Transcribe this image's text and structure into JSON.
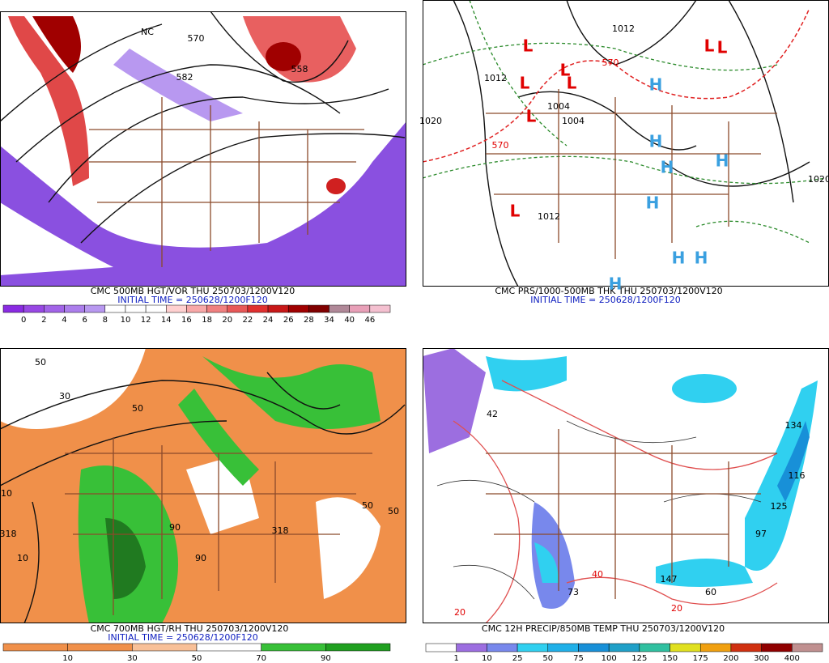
{
  "panels": [
    {
      "caption": "CMC 500MB HGT/VOR THU 250703/1200V120",
      "initial_time": "INITIAL TIME = 250628/1200F120",
      "map_labels": [
        "570",
        "582",
        "558",
        "NC"
      ],
      "colorbar": {
        "labels": [
          "0",
          "2",
          "4",
          "6",
          "8",
          "10",
          "12",
          "14",
          "16",
          "18",
          "20",
          "22",
          "24",
          "26",
          "28",
          "34",
          "40",
          "46"
        ],
        "colors": [
          "#8a2be2",
          "#9848e4",
          "#a264e8",
          "#ac7eec",
          "#b898f0",
          "#ffffff",
          "#ffffff",
          "#ffffff",
          "#ffd0d0",
          "#f8a8a8",
          "#f08080",
          "#e85858",
          "#e03030",
          "#c81818",
          "#a00000",
          "#800000",
          "#b08898",
          "#e8a0b8",
          "#f4c0d0"
        ]
      }
    },
    {
      "caption": "CMC PRS/1000-500MB THK THU 250703/1200V120",
      "initial_time": "INITIAL TIME = 250628/1200F120",
      "map_labels": [
        "1012",
        "1012",
        "1004",
        "1004",
        "1020",
        "1012",
        "570",
        "570",
        "1020",
        "L",
        "L",
        "L",
        "L",
        "L",
        "L",
        "L",
        "L",
        "H",
        "H",
        "H",
        "H",
        "H",
        "H",
        "H",
        "H"
      ]
    },
    {
      "caption": "CMC 700MB HGT/RH THU 250703/1200V120",
      "initial_time": "INITIAL TIME = 250628/1200F120",
      "map_labels": [
        "50",
        "50",
        "30",
        "10",
        "10",
        "318",
        "318",
        "90",
        "50",
        "50",
        "90"
      ],
      "colorbar": {
        "labels": [
          "10",
          "30",
          "50",
          "70",
          "90"
        ],
        "colors": [
          "#f0904a",
          "#f0904a",
          "#f8c098",
          "#ffffff",
          "#38c038",
          "#20a020"
        ]
      }
    },
    {
      "caption": "CMC 12H PRECIP/850MB TEMP THU 250703/1200V120",
      "map_labels": [
        "147",
        "125",
        "97",
        "60",
        "42",
        "116",
        "20",
        "40",
        "20",
        "73",
        "134"
      ],
      "colorbar": {
        "labels": [
          "1",
          "10",
          "25",
          "50",
          "75",
          "100",
          "125",
          "150",
          "175",
          "200",
          "300",
          "400"
        ],
        "colors": [
          "#ffffff",
          "#9c6ee0",
          "#7888ec",
          "#30d0f0",
          "#20b0e8",
          "#1890d8",
          "#20a0c8",
          "#30c0a0",
          "#e0e020",
          "#f0a010",
          "#d03010",
          "#900000",
          "#c09090"
        ]
      }
    }
  ]
}
